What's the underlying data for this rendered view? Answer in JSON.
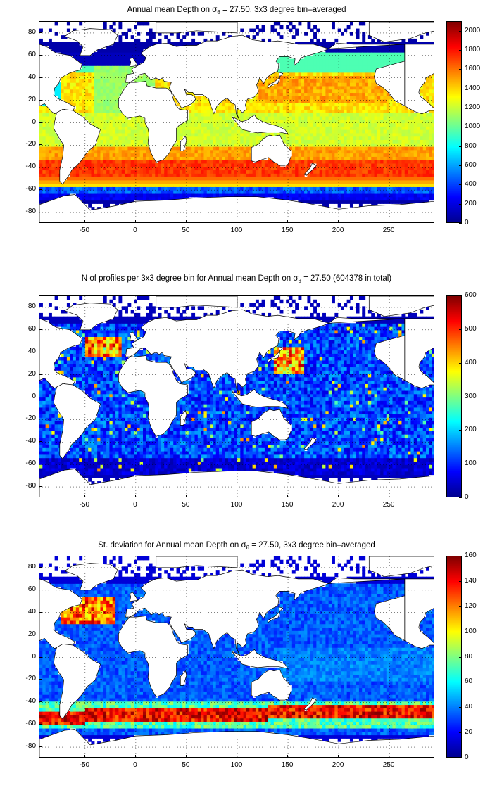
{
  "colormap": [
    "#00008f",
    "#0000ff",
    "#0080ff",
    "#00ffff",
    "#80ff80",
    "#ffff00",
    "#ff8000",
    "#ff0000",
    "#800000"
  ],
  "land_color": "#ffffff",
  "coast_color": "#000000",
  "grid_style": "dotted",
  "panels": [
    {
      "id": "mean-depth",
      "title_prefix": "Annual mean Depth on",
      "title_symbol": "σ",
      "title_subscript": "θ",
      "title_suffix": "= 27.50, 3x3 degree bin–averaged",
      "colorbar": {
        "min": 0,
        "max": 2100,
        "ticks": [
          "0",
          "200",
          "400",
          "600",
          "800",
          "1000",
          "1200",
          "1400",
          "1600",
          "1800",
          "2000"
        ]
      }
    },
    {
      "id": "n-profiles",
      "title_prefix": "N of profiles per 3x3 degree bin for Annual mean Depth on",
      "title_symbol": "σ",
      "title_subscript": "θ",
      "title_suffix": "= 27.50 (604378 in total)",
      "colorbar": {
        "min": 0,
        "max": 600,
        "ticks": [
          "0",
          "100",
          "200",
          "300",
          "400",
          "500",
          "600"
        ]
      }
    },
    {
      "id": "std-dev",
      "title_prefix": "St. deviation for Annual mean Depth on",
      "title_symbol": "σ",
      "title_subscript": "θ",
      "title_suffix": "= 27.50, 3x3 degree bin–averaged",
      "colorbar": {
        "min": 0,
        "max": 160,
        "ticks": [
          "0",
          "20",
          "40",
          "60",
          "80",
          "100",
          "120",
          "140",
          "160"
        ]
      }
    }
  ],
  "x_axis": {
    "min": -95,
    "max": 295,
    "ticks": [
      "-50",
      "0",
      "50",
      "100",
      "150",
      "200",
      "250"
    ]
  },
  "y_axis": {
    "min": -90,
    "max": 90,
    "ticks": [
      "80",
      "60",
      "40",
      "20",
      "0",
      "-20",
      "-40",
      "-60",
      "-80"
    ]
  }
}
